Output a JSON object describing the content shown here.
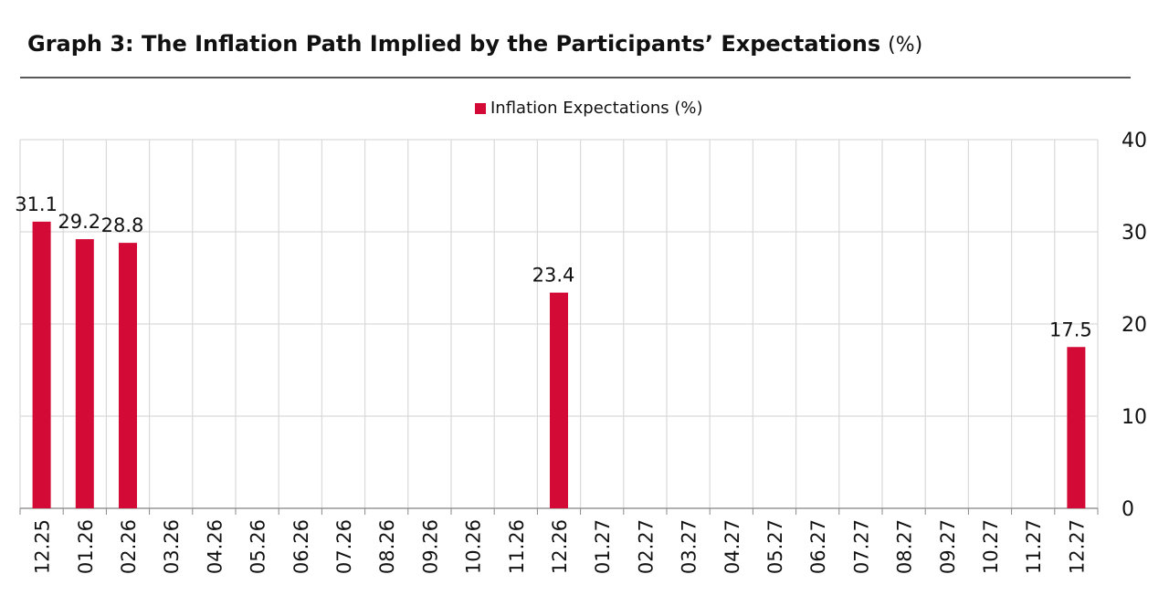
{
  "chart_data": {
    "type": "bar",
    "title": "Graph 3: The Inflation Path Implied by the Participants’ Expectations",
    "title_suffix": "(%)",
    "categories": [
      "12.25",
      "01.26",
      "02.26",
      "03.26",
      "04.26",
      "05.26",
      "06.26",
      "07.26",
      "08.26",
      "09.26",
      "10.26",
      "11.26",
      "12.26",
      "01.27",
      "02.27",
      "03.27",
      "04.27",
      "05.27",
      "06.27",
      "07.27",
      "08.27",
      "09.27",
      "10.27",
      "11.27",
      "12.27"
    ],
    "series": [
      {
        "name": "Inflation Expectations (%)",
        "color": "#d20a35",
        "values": [
          31.1,
          29.2,
          28.8,
          null,
          null,
          null,
          null,
          null,
          null,
          null,
          null,
          null,
          23.4,
          null,
          null,
          null,
          null,
          null,
          null,
          null,
          null,
          null,
          null,
          null,
          17.5
        ]
      }
    ],
    "ylim": [
      0,
      40
    ],
    "yticks": [
      0,
      10,
      20,
      30,
      40
    ],
    "grid": true,
    "y_axis_side": "right",
    "legend": "top"
  }
}
